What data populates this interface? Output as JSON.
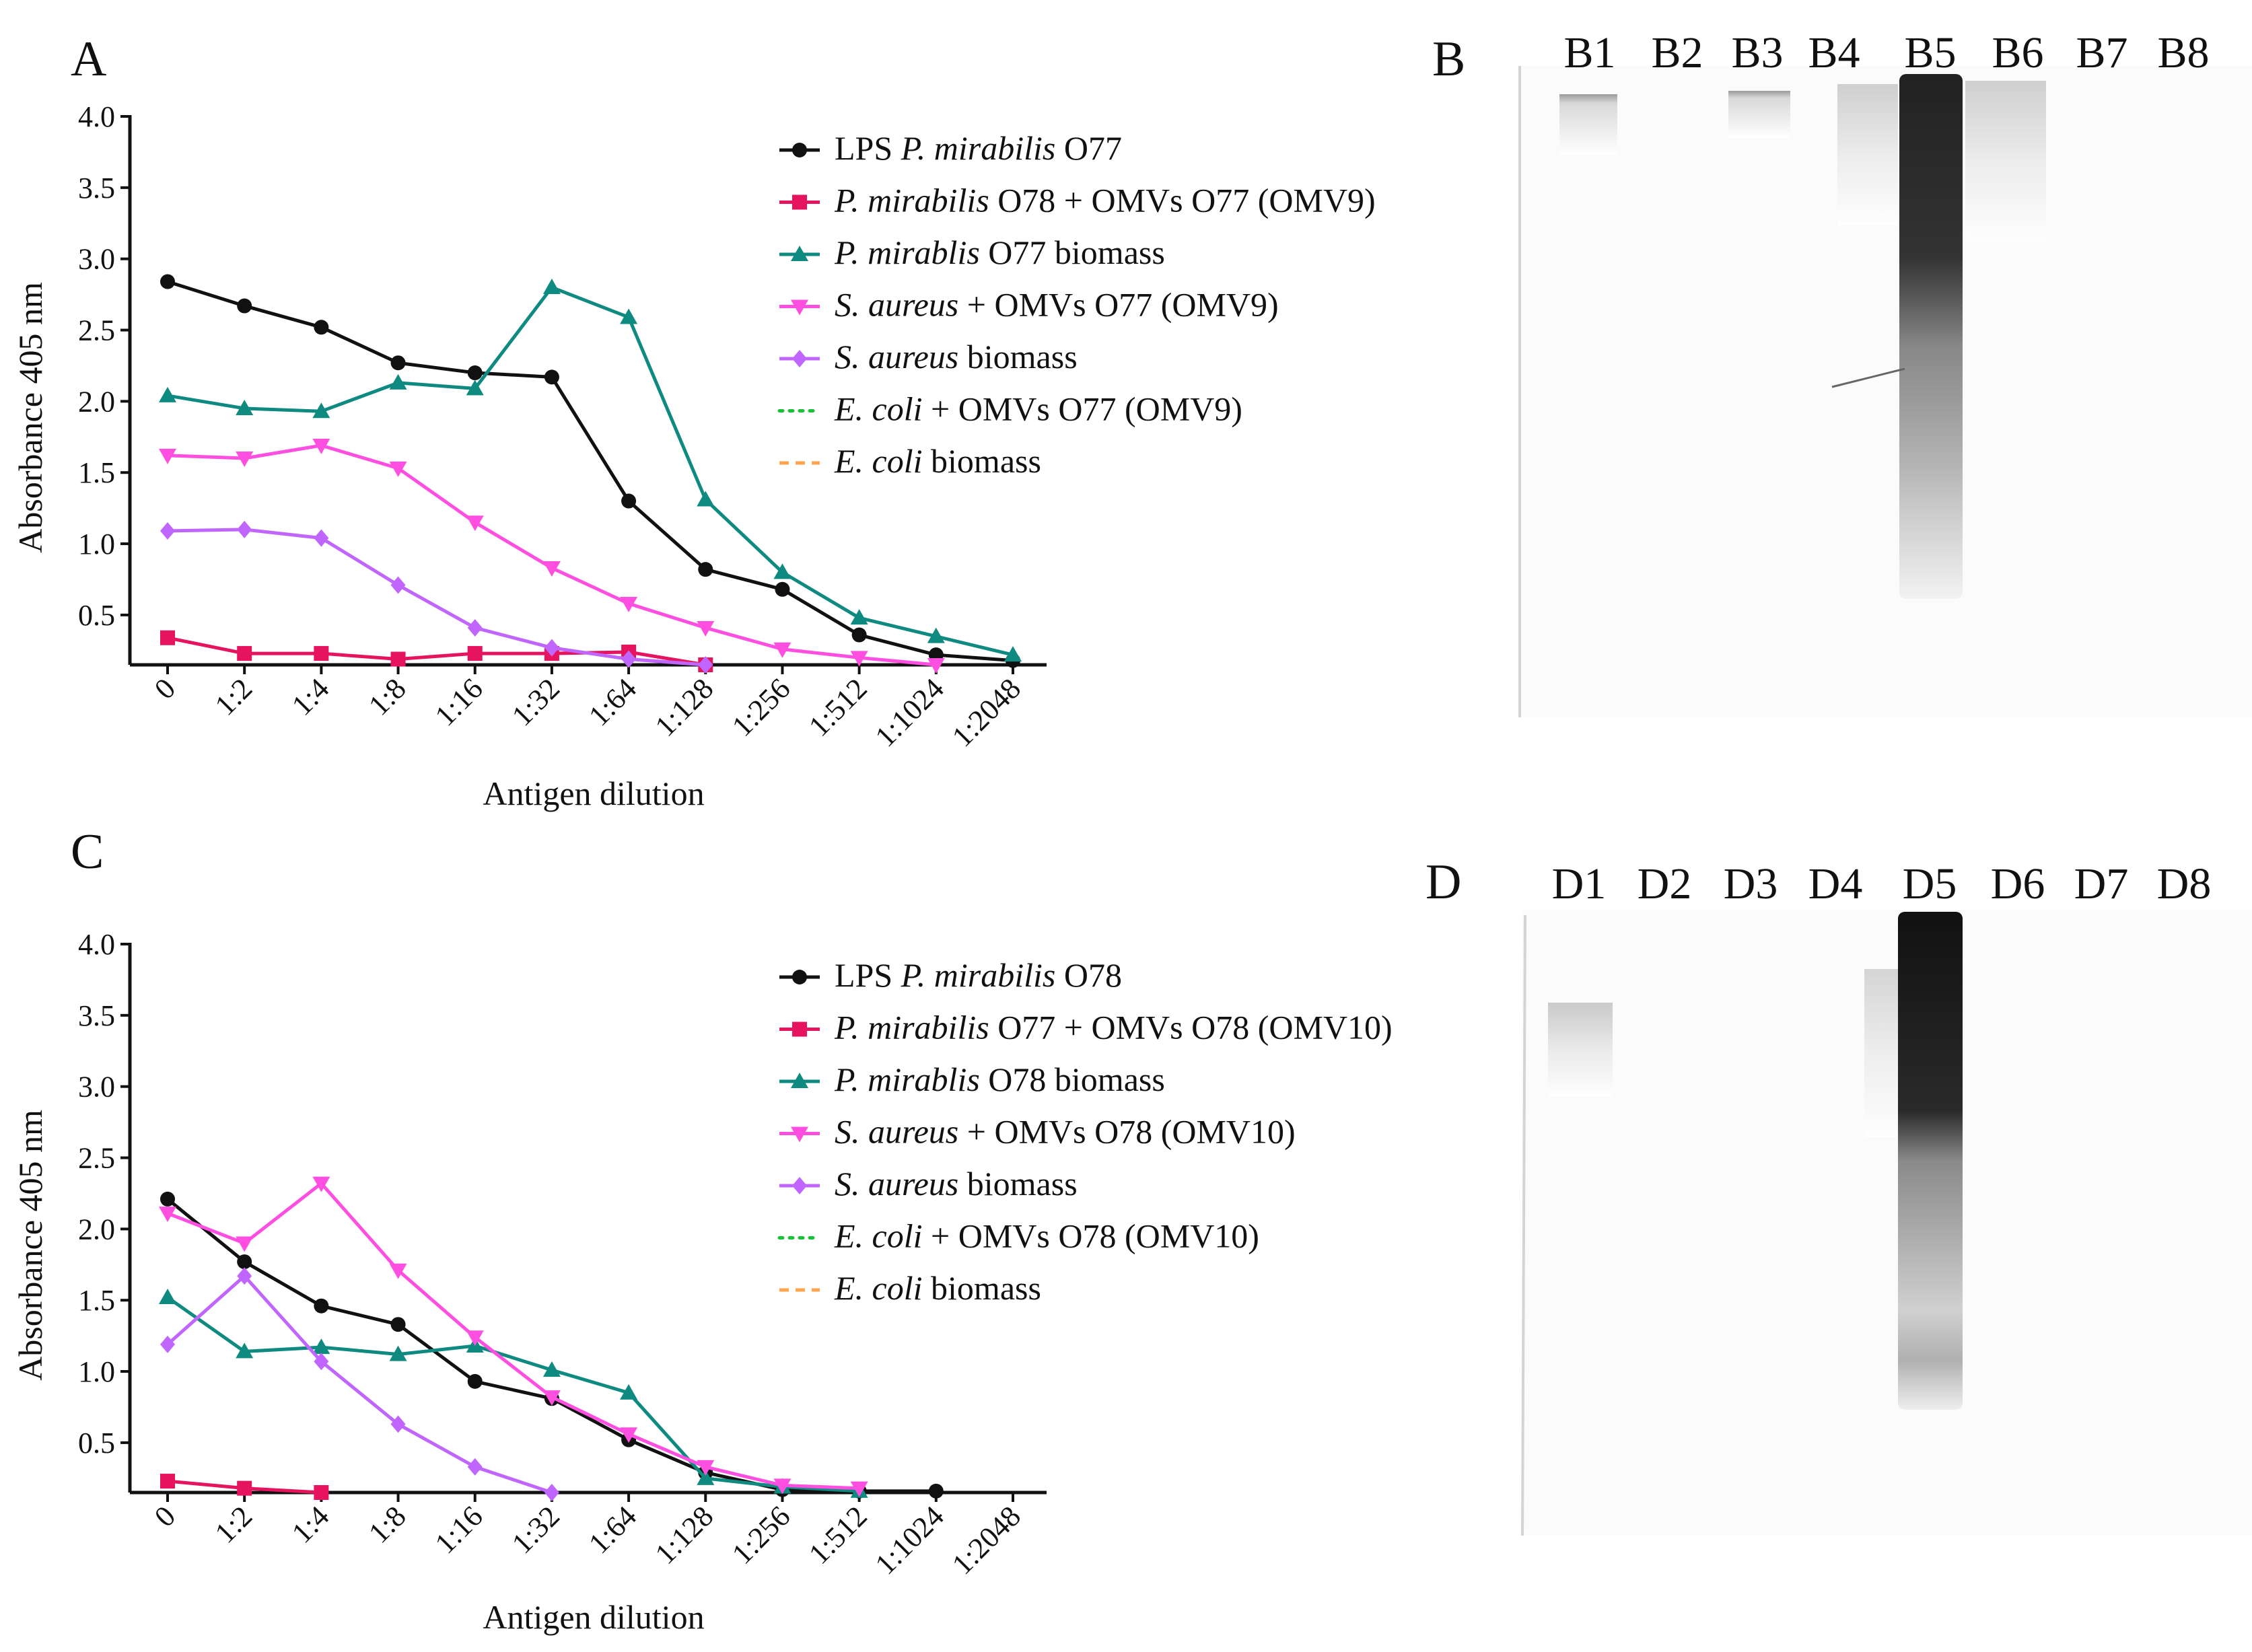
{
  "colors": {
    "black": "#111111",
    "red": "#e6145f",
    "teal": "#0f8a80",
    "pink": "#ff4fe0",
    "violet": "#c066ff",
    "green": "#19c23a",
    "orange": "#ffa64d"
  },
  "panels": {
    "A": {
      "letter": "A"
    },
    "B": {
      "letter": "B",
      "lanes": [
        "B1",
        "B2",
        "B3",
        "B4",
        "B5",
        "B6",
        "B7",
        "B8"
      ]
    },
    "C": {
      "letter": "C"
    },
    "D": {
      "letter": "D",
      "lanes": [
        "D1",
        "D2",
        "D3",
        "D4",
        "D5",
        "D6",
        "D7",
        "D8"
      ]
    }
  },
  "chart_data": [
    {
      "panel": "A",
      "type": "line",
      "title": "",
      "xlabel": "Antigen dilution",
      "ylabel": "Absorbance 405 nm",
      "categories": [
        "0",
        "1:2",
        "1:4",
        "1:8",
        "1:16",
        "1:32",
        "1:64",
        "1:128",
        "1:256",
        "1:512",
        "1:1024",
        "1:2048"
      ],
      "yticks": [
        "0.5",
        "1.0",
        "1.5",
        "2.0",
        "2.5",
        "3.0",
        "3.5",
        "4.0"
      ],
      "ylim": [
        0.15,
        4.0
      ],
      "series": [
        {
          "name": "LPS P. mirabilis O77",
          "legend": [
            {
              "t": "LPS ",
              "i": false
            },
            {
              "t": "P. mirabilis",
              "i": true
            },
            {
              "t": " O77",
              "i": false
            }
          ],
          "color": "#111111",
          "marker": "circle",
          "dash": "",
          "values": [
            2.84,
            2.67,
            2.52,
            2.27,
            2.2,
            2.17,
            1.3,
            0.82,
            0.68,
            0.36,
            0.22,
            0.18
          ]
        },
        {
          "name": "P. mirabilis O78 + OMVs O77 (OMV9)",
          "legend": [
            {
              "t": "P. mirabilis",
              "i": true
            },
            {
              "t": " O78 + OMVs O77 (OMV9)",
              "i": false
            }
          ],
          "color": "#e6145f",
          "marker": "square",
          "dash": "",
          "values": [
            0.34,
            0.23,
            0.23,
            0.19,
            0.23,
            0.23,
            0.24,
            0.15,
            null,
            null,
            null,
            null
          ]
        },
        {
          "name": "P. mirablis O77 biomass",
          "legend": [
            {
              "t": "P. mirablis",
              "i": true
            },
            {
              "t": " O77 biomass",
              "i": false
            }
          ],
          "color": "#0f8a80",
          "marker": "triangle",
          "dash": "",
          "values": [
            2.04,
            1.95,
            1.93,
            2.13,
            2.09,
            2.8,
            2.59,
            1.31,
            0.8,
            0.48,
            0.35,
            0.22
          ]
        },
        {
          "name": "S. aureus + OMVs O77 (OMV9)",
          "legend": [
            {
              "t": "S. aureus",
              "i": true
            },
            {
              "t": " + OMVs O77 (OMV9)",
              "i": false
            }
          ],
          "color": "#ff4fe0",
          "marker": "triangle-down",
          "dash": "",
          "values": [
            1.62,
            1.6,
            1.69,
            1.53,
            1.15,
            0.83,
            0.58,
            0.41,
            0.26,
            0.2,
            0.15,
            null
          ]
        },
        {
          "name": "S. aureus biomass",
          "legend": [
            {
              "t": "S. aureus",
              "i": true
            },
            {
              "t": " biomass",
              "i": false
            }
          ],
          "color": "#c066ff",
          "marker": "diamond",
          "dash": "",
          "values": [
            1.09,
            1.1,
            1.04,
            0.71,
            0.41,
            0.27,
            0.19,
            0.15,
            null,
            null,
            null,
            null
          ]
        },
        {
          "name": "E. coli + OMVs O77 (OMV9)",
          "legend": [
            {
              "t": "E. coli",
              "i": true
            },
            {
              "t": " + OMVs O77 (OMV9)",
              "i": false
            }
          ],
          "color": "#19c23a",
          "marker": "none",
          "dash": "dot",
          "values": [
            null,
            null,
            null,
            null,
            null,
            null,
            null,
            null,
            null,
            null,
            null,
            null
          ]
        },
        {
          "name": "E. coli biomass",
          "legend": [
            {
              "t": "E. coli",
              "i": true
            },
            {
              "t": " biomass",
              "i": false
            }
          ],
          "color": "#ffa64d",
          "marker": "none",
          "dash": "dash",
          "values": [
            null,
            null,
            null,
            null,
            null,
            null,
            null,
            null,
            null,
            null,
            null,
            null
          ]
        }
      ]
    },
    {
      "panel": "C",
      "type": "line",
      "title": "",
      "xlabel": "Antigen dilution",
      "ylabel": "Absorbance 405 nm",
      "categories": [
        "0",
        "1:2",
        "1:4",
        "1:8",
        "1:16",
        "1:32",
        "1:64",
        "1:128",
        "1:256",
        "1:512",
        "1:1024",
        "1:2048"
      ],
      "yticks": [
        "0.5",
        "1.0",
        "1.5",
        "2.0",
        "2.5",
        "3.0",
        "3.5",
        "4.0"
      ],
      "ylim": [
        0.15,
        4.0
      ],
      "series": [
        {
          "name": "LPS P. mirabilis O78",
          "legend": [
            {
              "t": "LPS ",
              "i": false
            },
            {
              "t": "P. mirabilis",
              "i": true
            },
            {
              "t": " O78",
              "i": false
            }
          ],
          "color": "#111111",
          "marker": "circle",
          "dash": "",
          "values": [
            2.21,
            1.77,
            1.46,
            1.33,
            0.93,
            0.81,
            0.52,
            0.29,
            0.17,
            0.16,
            0.16,
            null
          ]
        },
        {
          "name": "P. mirabilis O77 + OMVs O78 (OMV10)",
          "legend": [
            {
              "t": "P. mirabilis",
              "i": true
            },
            {
              "t": " O77 + OMVs O78 (OMV10)",
              "i": false
            }
          ],
          "color": "#e6145f",
          "marker": "square",
          "dash": "",
          "values": [
            0.23,
            0.18,
            0.15,
            null,
            null,
            null,
            null,
            null,
            null,
            null,
            null,
            null
          ]
        },
        {
          "name": "P. mirablis O78 biomass",
          "legend": [
            {
              "t": "P. mirablis",
              "i": true
            },
            {
              "t": " O78 biomass",
              "i": false
            }
          ],
          "color": "#0f8a80",
          "marker": "triangle",
          "dash": "",
          "values": [
            1.52,
            1.14,
            1.17,
            1.12,
            1.18,
            1.01,
            0.85,
            0.25,
            0.19,
            0.16,
            null,
            null
          ]
        },
        {
          "name": "S. aureus + OMVs O78 (OMV10)",
          "legend": [
            {
              "t": "S. aureus",
              "i": true
            },
            {
              "t": " + OMVs O78 (OMV10)",
              "i": false
            }
          ],
          "color": "#ff4fe0",
          "marker": "triangle-down",
          "dash": "",
          "values": [
            2.11,
            1.9,
            2.32,
            1.71,
            1.24,
            0.82,
            0.56,
            0.33,
            0.2,
            0.18,
            null,
            null
          ]
        },
        {
          "name": "S. aureus biomass",
          "legend": [
            {
              "t": "S. aureus",
              "i": true
            },
            {
              "t": " biomass",
              "i": false
            }
          ],
          "color": "#c066ff",
          "marker": "diamond",
          "dash": "",
          "values": [
            1.19,
            1.67,
            1.07,
            0.63,
            0.33,
            0.15,
            null,
            null,
            null,
            null,
            null,
            null
          ]
        },
        {
          "name": "E. coli + OMVs O78 (OMV10)",
          "legend": [
            {
              "t": "E. coli",
              "i": true
            },
            {
              "t": " + OMVs O78 (OMV10)",
              "i": false
            }
          ],
          "color": "#19c23a",
          "marker": "none",
          "dash": "dot",
          "values": [
            null,
            null,
            null,
            null,
            null,
            null,
            null,
            null,
            null,
            null,
            null,
            null
          ]
        },
        {
          "name": "E. coli biomass",
          "legend": [
            {
              "t": "E. coli",
              "i": true
            },
            {
              "t": " biomass",
              "i": false
            }
          ],
          "color": "#ffa64d",
          "marker": "none",
          "dash": "dash",
          "values": [
            null,
            null,
            null,
            null,
            null,
            null,
            null,
            null,
            null,
            null,
            null,
            null
          ]
        }
      ]
    }
  ]
}
